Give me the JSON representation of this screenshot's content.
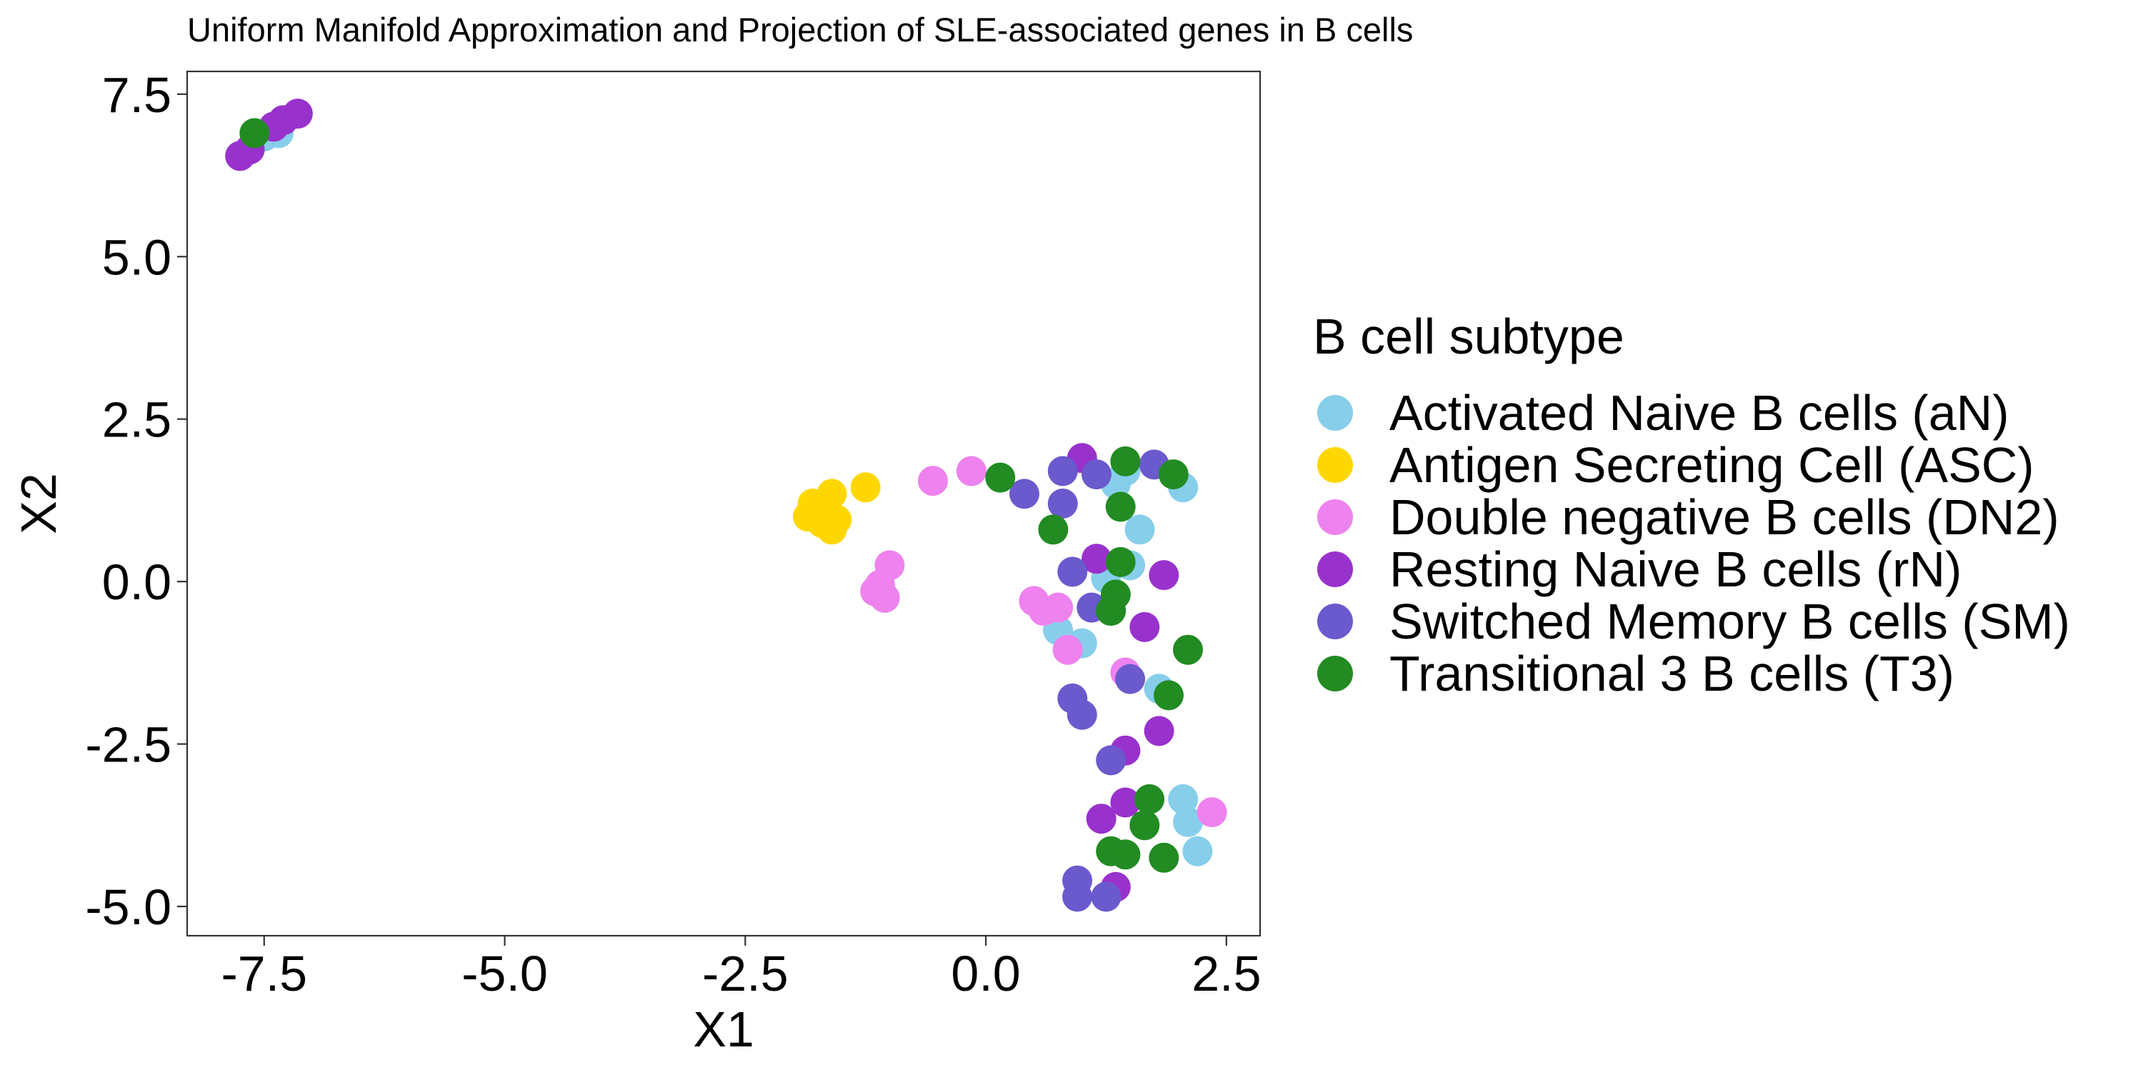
{
  "chart_data": {
    "type": "scatter",
    "title": "Uniform Manifold Approximation and Projection of SLE-associated genes in B cells",
    "xlabel": "X1",
    "ylabel": "X2",
    "xlim": [
      -8.3,
      2.85
    ],
    "ylim": [
      -5.45,
      7.85
    ],
    "x_ticks": [
      -7.5,
      -5.0,
      -2.5,
      0.0,
      2.5
    ],
    "x_tick_labels": [
      "-7.5",
      "-5.0",
      "-2.5",
      "0.0",
      "2.5"
    ],
    "y_ticks": [
      7.5,
      5.0,
      2.5,
      0.0,
      -2.5,
      -5.0
    ],
    "y_tick_labels": [
      "7.5",
      "5.0",
      "2.5",
      "0.0",
      "-2.5",
      "-5.0"
    ],
    "grid": false,
    "legend": {
      "title": "B cell subtype",
      "position": "right"
    },
    "series": [
      {
        "name": "Activated Naive B cells (aN)",
        "color": "#87CEEB",
        "points": [
          [
            -7.35,
            6.9
          ],
          [
            -7.5,
            6.85
          ],
          [
            1.35,
            1.5
          ],
          [
            2.05,
            1.45
          ],
          [
            1.6,
            0.8
          ],
          [
            1.5,
            0.25
          ],
          [
            1.25,
            0.05
          ],
          [
            0.75,
            -0.75
          ],
          [
            1.0,
            -0.95
          ],
          [
            1.8,
            -1.65
          ],
          [
            2.05,
            -3.35
          ],
          [
            2.1,
            -3.7
          ],
          [
            2.2,
            -4.15
          ],
          [
            1.45,
            1.7
          ]
        ]
      },
      {
        "name": "Antigen Secreting Cell (ASC)",
        "color": "#FFD700",
        "points": [
          [
            -1.8,
            1.2
          ],
          [
            -1.85,
            1.0
          ],
          [
            -1.7,
            0.9
          ],
          [
            -1.6,
            1.35
          ],
          [
            -1.55,
            0.95
          ],
          [
            -1.6,
            0.8
          ],
          [
            -1.25,
            1.45
          ],
          [
            -1.75,
            1.05
          ]
        ]
      },
      {
        "name": "Double negative B cells (DN2)",
        "color": "#EE82EE",
        "points": [
          [
            -0.55,
            1.55
          ],
          [
            -0.15,
            1.7
          ],
          [
            -1.0,
            0.25
          ],
          [
            -1.1,
            -0.05
          ],
          [
            -1.05,
            -0.25
          ],
          [
            -1.15,
            -0.15
          ],
          [
            0.5,
            -0.3
          ],
          [
            0.6,
            -0.45
          ],
          [
            0.75,
            -0.4
          ],
          [
            0.85,
            -1.05
          ],
          [
            1.45,
            -1.4
          ],
          [
            2.35,
            -3.55
          ]
        ]
      },
      {
        "name": "Resting Naive B cells (rN)",
        "color": "#9932CC",
        "points": [
          [
            -7.75,
            6.55
          ],
          [
            -7.65,
            6.65
          ],
          [
            -7.4,
            7.0
          ],
          [
            -7.3,
            7.1
          ],
          [
            -7.15,
            7.2
          ],
          [
            1.0,
            1.9
          ],
          [
            1.15,
            0.35
          ],
          [
            1.85,
            0.1
          ],
          [
            1.65,
            -0.7
          ],
          [
            1.45,
            -2.6
          ],
          [
            1.8,
            -2.3
          ],
          [
            1.45,
            -3.4
          ],
          [
            1.2,
            -3.65
          ],
          [
            1.35,
            -4.7
          ]
        ]
      },
      {
        "name": "Switched Memory B cells (SM)",
        "color": "#6A5ACD",
        "points": [
          [
            0.4,
            1.35
          ],
          [
            0.8,
            1.7
          ],
          [
            0.8,
            1.2
          ],
          [
            1.15,
            1.65
          ],
          [
            1.75,
            1.8
          ],
          [
            0.9,
            0.15
          ],
          [
            1.1,
            -0.4
          ],
          [
            0.9,
            -1.8
          ],
          [
            1.0,
            -2.05
          ],
          [
            1.5,
            -1.5
          ],
          [
            1.3,
            -2.75
          ],
          [
            0.95,
            -4.6
          ],
          [
            0.95,
            -4.85
          ],
          [
            1.25,
            -4.85
          ]
        ]
      },
      {
        "name": "Transitional 3 B cells (T3)",
        "color": "#228B22",
        "points": [
          [
            -7.6,
            6.9
          ],
          [
            0.15,
            1.6
          ],
          [
            1.45,
            1.85
          ],
          [
            1.95,
            1.65
          ],
          [
            1.4,
            1.15
          ],
          [
            0.7,
            0.8
          ],
          [
            1.4,
            0.3
          ],
          [
            1.35,
            -0.2
          ],
          [
            1.3,
            -0.45
          ],
          [
            2.1,
            -1.05
          ],
          [
            1.9,
            -1.75
          ],
          [
            1.7,
            -3.35
          ],
          [
            1.65,
            -3.75
          ],
          [
            1.3,
            -4.15
          ],
          [
            1.45,
            -4.2
          ],
          [
            1.85,
            -4.25
          ]
        ]
      }
    ]
  }
}
